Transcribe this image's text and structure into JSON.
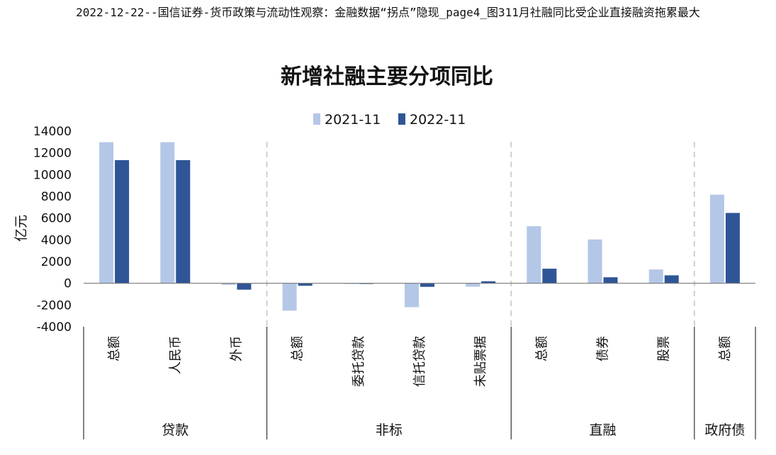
{
  "caption": "2022-12-22--国信证券-货币政策与流动性观察：金融数据“拐点”隐现_page4_图311月社融同比受企业直接融资拖累最大",
  "chart_data": {
    "type": "bar",
    "title": "新增社融主要分项同比",
    "ylabel": "亿元",
    "ylim": [
      -4000,
      14000
    ],
    "yticks": [
      -4000,
      -2000,
      0,
      2000,
      4000,
      6000,
      8000,
      10000,
      12000,
      14000
    ],
    "legend_position": "top-center",
    "categories": [
      "总额",
      "人民币",
      "外币",
      "总额",
      "委托贷款",
      "信托贷款",
      "未贴票据",
      "总额",
      "债券",
      "股票",
      "总额"
    ],
    "groups": [
      {
        "label": "贷款",
        "start": 0,
        "end": 2
      },
      {
        "label": "非标",
        "start": 3,
        "end": 6
      },
      {
        "label": "直融",
        "start": 7,
        "end": 9
      },
      {
        "label": "政府债",
        "start": 10,
        "end": 10
      }
    ],
    "series": [
      {
        "name": "2021-11",
        "color": "#b4c7e7",
        "values": [
          12980,
          12980,
          -150,
          -2520,
          0,
          -2200,
          -320,
          5250,
          4030,
          1270,
          8150
        ]
      },
      {
        "name": "2022-11",
        "color": "#2f5597",
        "values": [
          11330,
          11330,
          -590,
          -230,
          -50,
          -330,
          180,
          1340,
          550,
          730,
          6470
        ]
      }
    ]
  }
}
